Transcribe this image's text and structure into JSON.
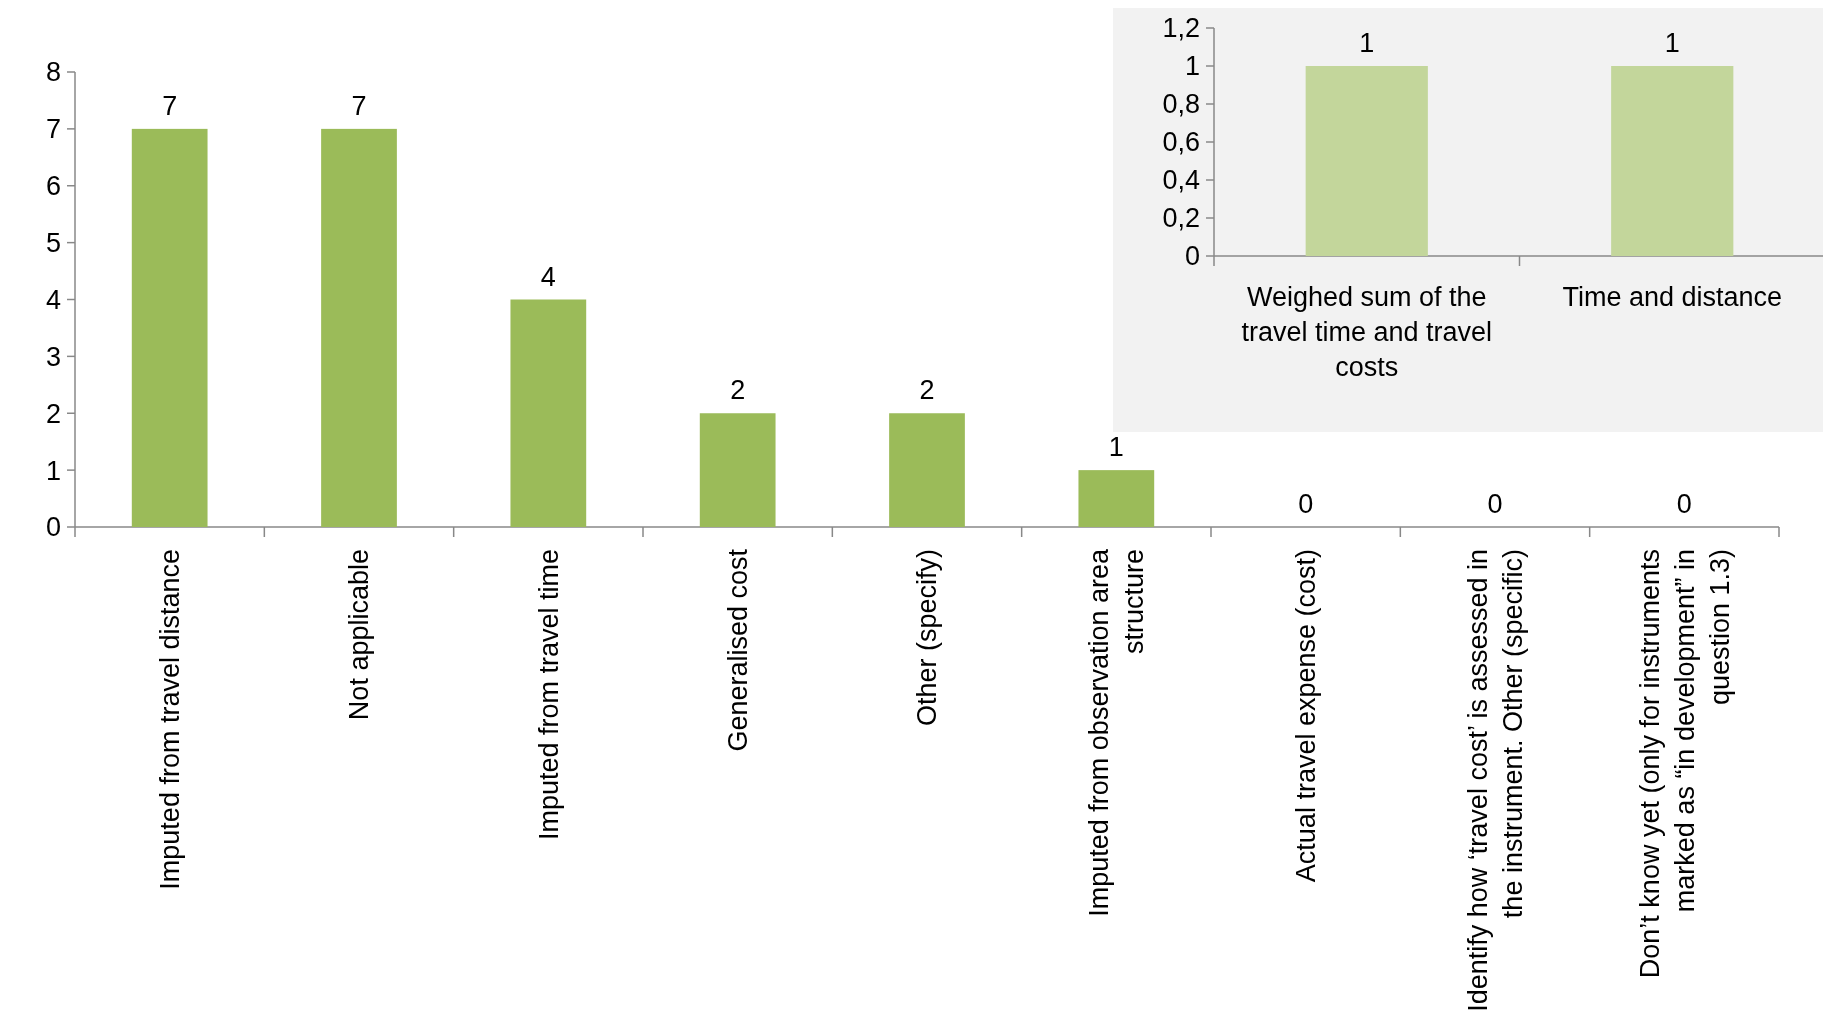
{
  "chart_data": [
    {
      "type": "bar",
      "categories": [
        "Imputed from travel distance",
        "Not applicable",
        "Imputed from travel time",
        "Generalised cost",
        "Other (specify)",
        "Imputed from observation area structure",
        "Actual travel expense (cost)",
        "Identify how ‘travel cost’ is assessed in the instrument. Other (specific)",
        "Don’t know yet (only for instruments marked as “in development” in question 1.3)"
      ],
      "values": [
        7,
        7,
        4,
        2,
        2,
        1,
        0,
        0,
        0
      ],
      "color": "#9bbb59",
      "ylim": [
        0,
        8
      ],
      "yticks": [
        0,
        1,
        2,
        3,
        4,
        5,
        6,
        7,
        8
      ],
      "data_labels": true
    },
    {
      "type": "bar",
      "categories": [
        "Weighed sum of the travel time and travel costs",
        "Time and distance"
      ],
      "values": [
        1,
        1
      ],
      "color": "#c3d69b",
      "ylim": [
        0,
        1.2
      ],
      "yticks": [
        0,
        {
          "value": 0.2,
          "label": "0,2"
        },
        {
          "value": 0.4,
          "label": "0,4"
        },
        {
          "value": 0.6,
          "label": "0,6"
        },
        {
          "value": 0.8,
          "label": "0,8"
        },
        1,
        {
          "value": 1.2,
          "label": "1,2"
        }
      ],
      "data_labels": true
    }
  ]
}
